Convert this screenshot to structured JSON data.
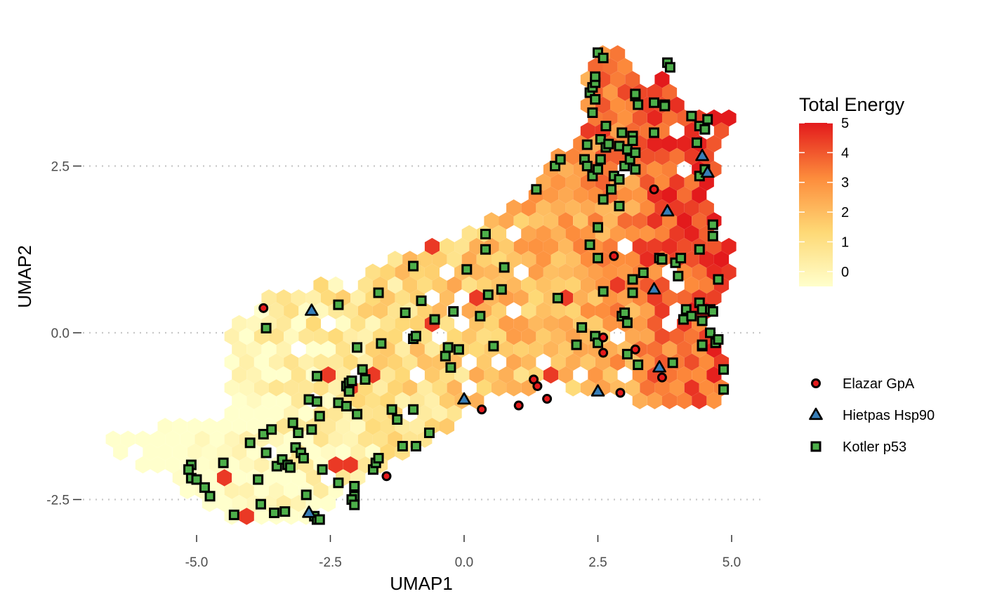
{
  "chart_data": {
    "type": "scatter",
    "subtype": "hexbin with overlaid points",
    "xlabel": "UMAP1",
    "ylabel": "UMAP2",
    "xlim": [
      -7.1,
      5.9
    ],
    "ylim": [
      -3.05,
      4.5
    ],
    "x_ticks": [
      -5.0,
      -2.5,
      0.0,
      2.5,
      5.0
    ],
    "x_tick_labels": [
      "-5.0",
      "-2.5",
      "0.0",
      "2.5",
      "5.0"
    ],
    "y_ticks": [
      -2.5,
      0.0,
      2.5
    ],
    "y_tick_labels": [
      "-2.5",
      "0.0",
      "2.5"
    ],
    "grid": "horizontal dotted at y ticks",
    "color_scale": {
      "title": "Total Energy",
      "min": -0.5,
      "max": 5,
      "ticks": [
        0,
        1,
        2,
        3,
        4,
        5
      ],
      "tick_labels": [
        "0",
        "1",
        "2",
        "3",
        "4",
        "5"
      ],
      "colors": [
        "#ffffcc",
        "#fed976",
        "#fd8d3c",
        "#e31a1c"
      ],
      "placement": "right"
    },
    "hexbin_region": {
      "description": "hexagonal bins of Total Energy covering the UMAP embedding",
      "outline": [
        [
          -6.7,
          -1.6
        ],
        [
          -5.4,
          -1.3
        ],
        [
          -4.3,
          -1.2
        ],
        [
          -4.5,
          -0.4
        ],
        [
          -4.4,
          0.3
        ],
        [
          -3.6,
          0.6
        ],
        [
          -2.2,
          0.8
        ],
        [
          -1.2,
          1.2
        ],
        [
          -0.1,
          1.5
        ],
        [
          1.0,
          2.0
        ],
        [
          1.7,
          2.6
        ],
        [
          2.3,
          3.2
        ],
        [
          2.3,
          4.1
        ],
        [
          2.8,
          4.5
        ],
        [
          3.3,
          3.6
        ],
        [
          3.8,
          4.0
        ],
        [
          4.1,
          3.4
        ],
        [
          4.6,
          3.4
        ],
        [
          5.1,
          3.3
        ],
        [
          4.9,
          2.7
        ],
        [
          4.6,
          2.2
        ],
        [
          4.8,
          1.4
        ],
        [
          5.2,
          1.3
        ],
        [
          4.9,
          0.6
        ],
        [
          4.5,
          0.0
        ],
        [
          4.9,
          -0.5
        ],
        [
          5.0,
          -0.9
        ],
        [
          4.6,
          -1.1
        ],
        [
          4.0,
          -1.2
        ],
        [
          3.1,
          -1.0
        ],
        [
          2.3,
          -0.9
        ],
        [
          1.6,
          -0.8
        ],
        [
          0.4,
          -1.0
        ],
        [
          -0.5,
          -1.6
        ],
        [
          -1.1,
          -1.9
        ],
        [
          -2.0,
          -2.2
        ],
        [
          -2.9,
          -2.9
        ],
        [
          -3.6,
          -2.8
        ],
        [
          -4.5,
          -2.8
        ],
        [
          -5.5,
          -2.2
        ],
        [
          -6.7,
          -1.7
        ]
      ]
    },
    "series": [
      {
        "name": "Elazar GpA",
        "marker": "circle",
        "fill": "#e41a1c",
        "points": [
          [
            -3.75,
            0.37
          ],
          [
            -1.45,
            -2.15
          ],
          [
            0.33,
            -1.15
          ],
          [
            1.02,
            -1.09
          ],
          [
            1.3,
            -0.7
          ],
          [
            1.37,
            -0.8
          ],
          [
            1.55,
            -0.99
          ],
          [
            2.6,
            -0.07
          ],
          [
            2.6,
            -0.3
          ],
          [
            2.8,
            1.15
          ],
          [
            2.92,
            -0.9
          ],
          [
            3.2,
            -0.25
          ],
          [
            3.55,
            2.15
          ],
          [
            3.7,
            -0.67
          ]
        ]
      },
      {
        "name": "Hietpas Hsp90",
        "marker": "triangle",
        "fill": "#377eb8",
        "points": [
          [
            -2.85,
            0.33
          ],
          [
            -2.9,
            -2.7
          ],
          [
            0.0,
            -1.0
          ],
          [
            2.5,
            -0.88
          ],
          [
            3.55,
            0.65
          ],
          [
            3.65,
            -0.52
          ],
          [
            3.8,
            1.82
          ],
          [
            4.45,
            2.65
          ],
          [
            4.55,
            2.4
          ]
        ]
      },
      {
        "name": "Kotler p53",
        "marker": "square",
        "fill": "#4daf4a",
        "points": [
          [
            -5.1,
            -1.98
          ],
          [
            -5.15,
            -2.05
          ],
          [
            -5.1,
            -2.18
          ],
          [
            -5.0,
            -2.2
          ],
          [
            -4.85,
            -2.32
          ],
          [
            -4.75,
            -2.45
          ],
          [
            -4.5,
            -1.95
          ],
          [
            -4.3,
            -2.73
          ],
          [
            -4.0,
            -1.65
          ],
          [
            -3.85,
            -2.2
          ],
          [
            -3.8,
            -2.57
          ],
          [
            -3.75,
            -1.52
          ],
          [
            -3.7,
            -1.8
          ],
          [
            -3.7,
            0.07
          ],
          [
            -3.6,
            -1.45
          ],
          [
            -3.55,
            -2.7
          ],
          [
            -3.5,
            -2.0
          ],
          [
            -3.4,
            -1.9
          ],
          [
            -3.35,
            -2.68
          ],
          [
            -3.3,
            -1.98
          ],
          [
            -3.25,
            -2.02
          ],
          [
            -3.2,
            -1.35
          ],
          [
            -3.15,
            -1.72
          ],
          [
            -3.1,
            -1.5
          ],
          [
            -3.05,
            -1.8
          ],
          [
            -3.0,
            -1.88
          ],
          [
            -2.95,
            -2.43
          ],
          [
            -2.9,
            -1.0
          ],
          [
            -2.85,
            -1.45
          ],
          [
            -2.8,
            -2.75
          ],
          [
            -2.75,
            -2.8
          ],
          [
            -2.7,
            -2.8
          ],
          [
            -2.75,
            -1.03
          ],
          [
            -2.75,
            -0.65
          ],
          [
            -2.7,
            -1.25
          ],
          [
            -2.65,
            -2.05
          ],
          [
            -2.35,
            -2.25
          ],
          [
            -2.35,
            -1.05
          ],
          [
            -2.35,
            0.42
          ],
          [
            -2.2,
            -1.1
          ],
          [
            -2.2,
            -0.8
          ],
          [
            -2.15,
            -0.75
          ],
          [
            -2.1,
            -0.72
          ],
          [
            -2.15,
            -0.88
          ],
          [
            -2.05,
            -2.3
          ],
          [
            -2.05,
            -2.45
          ],
          [
            -2.1,
            -2.5
          ],
          [
            -2.05,
            -2.58
          ],
          [
            -2.0,
            -1.22
          ],
          [
            -2.0,
            -0.22
          ],
          [
            -1.9,
            -0.55
          ],
          [
            -1.85,
            -0.7
          ],
          [
            -1.7,
            -2.05
          ],
          [
            -1.65,
            -1.95
          ],
          [
            -1.6,
            -1.88
          ],
          [
            -1.6,
            0.6
          ],
          [
            -1.55,
            -0.16
          ],
          [
            -1.35,
            -1.15
          ],
          [
            -1.25,
            -1.3
          ],
          [
            -1.15,
            -1.7
          ],
          [
            -1.1,
            0.3
          ],
          [
            -0.95,
            -0.09
          ],
          [
            -0.95,
            1.0
          ],
          [
            -0.9,
            -0.05
          ],
          [
            -0.95,
            -1.15
          ],
          [
            -0.9,
            -1.7
          ],
          [
            -0.8,
            0.48
          ],
          [
            -0.65,
            -1.5
          ],
          [
            -0.55,
            0.2
          ],
          [
            -0.35,
            -0.35
          ],
          [
            -0.3,
            -0.22
          ],
          [
            -0.25,
            -0.52
          ],
          [
            -0.2,
            0.32
          ],
          [
            -0.1,
            -0.25
          ],
          [
            0.05,
            0.95
          ],
          [
            0.3,
            0.25
          ],
          [
            0.4,
            1.48
          ],
          [
            0.4,
            1.25
          ],
          [
            0.45,
            0.57
          ],
          [
            0.55,
            -0.2
          ],
          [
            0.7,
            0.65
          ],
          [
            0.75,
            0.98
          ],
          [
            1.35,
            2.15
          ],
          [
            1.7,
            2.5
          ],
          [
            1.75,
            0.52
          ],
          [
            1.8,
            2.6
          ],
          [
            2.1,
            -0.18
          ],
          [
            2.2,
            0.08
          ],
          [
            2.25,
            2.6
          ],
          [
            2.3,
            2.5
          ],
          [
            2.3,
            2.82
          ],
          [
            2.35,
            1.32
          ],
          [
            2.35,
            3.6
          ],
          [
            2.4,
            3.68
          ],
          [
            2.4,
            3.3
          ],
          [
            2.45,
            3.75
          ],
          [
            2.45,
            3.84
          ],
          [
            2.45,
            3.5
          ],
          [
            2.4,
            2.35
          ],
          [
            2.45,
            -0.05
          ],
          [
            2.5,
            2.45
          ],
          [
            2.55,
            2.6
          ],
          [
            2.55,
            2.9
          ],
          [
            2.5,
            -0.15
          ],
          [
            2.5,
            1.12
          ],
          [
            2.5,
            1.58
          ],
          [
            2.5,
            4.2
          ],
          [
            2.6,
            4.12
          ],
          [
            2.6,
            2.0
          ],
          [
            2.6,
            0.62
          ],
          [
            2.65,
            2.78
          ],
          [
            2.65,
            3.1
          ],
          [
            2.7,
            2.83
          ],
          [
            2.75,
            2.15
          ],
          [
            2.8,
            2.35
          ],
          [
            2.9,
            1.9
          ],
          [
            2.9,
            2.8
          ],
          [
            2.9,
            2.3
          ],
          [
            2.95,
            3.0
          ],
          [
            2.95,
            0.25
          ],
          [
            3.0,
            0.3
          ],
          [
            3.0,
            2.5
          ],
          [
            3.05,
            2.75
          ],
          [
            3.05,
            0.15
          ],
          [
            3.05,
            -0.32
          ],
          [
            3.1,
            2.6
          ],
          [
            3.15,
            2.95
          ],
          [
            3.15,
            2.88
          ],
          [
            3.15,
            0.8
          ],
          [
            3.15,
            0.6
          ],
          [
            3.2,
            2.7
          ],
          [
            3.2,
            2.45
          ],
          [
            3.2,
            3.55
          ],
          [
            3.2,
            3.58
          ],
          [
            3.25,
            3.42
          ],
          [
            3.25,
            -0.48
          ],
          [
            3.35,
            0.9
          ],
          [
            3.55,
            3.45
          ],
          [
            3.55,
            3.0
          ],
          [
            3.65,
            1.12
          ],
          [
            3.7,
            1.1
          ],
          [
            3.75,
            3.42
          ],
          [
            3.75,
            3.4
          ],
          [
            3.8,
            4.05
          ],
          [
            3.85,
            3.98
          ],
          [
            3.9,
            -0.45
          ],
          [
            3.95,
            1.05
          ],
          [
            4.0,
            0.85
          ],
          [
            4.05,
            1.12
          ],
          [
            4.1,
            0.2
          ],
          [
            4.15,
            0.35
          ],
          [
            4.25,
            0.25
          ],
          [
            4.25,
            3.25
          ],
          [
            4.35,
            2.85
          ],
          [
            4.4,
            3.1
          ],
          [
            4.4,
            1.25
          ],
          [
            4.4,
            0.45
          ],
          [
            4.45,
            0.35
          ],
          [
            4.45,
            0.18
          ],
          [
            4.45,
            -0.2
          ],
          [
            4.45,
            -0.18
          ],
          [
            4.5,
            3.05
          ],
          [
            4.55,
            3.2
          ],
          [
            4.4,
            2.35
          ],
          [
            4.5,
            2.45
          ],
          [
            4.6,
            0.0
          ],
          [
            4.6,
            0.35
          ],
          [
            4.65,
            1.62
          ],
          [
            4.65,
            1.45
          ],
          [
            4.65,
            0.32
          ],
          [
            4.7,
            -0.15
          ],
          [
            4.75,
            0.8
          ],
          [
            4.75,
            -0.1
          ],
          [
            4.85,
            -0.55
          ],
          [
            4.85,
            -0.85
          ]
        ]
      }
    ],
    "legend": {
      "placement": "right",
      "entries": [
        "Elazar GpA",
        "Hietpas Hsp90",
        "Kotler p53"
      ]
    }
  }
}
